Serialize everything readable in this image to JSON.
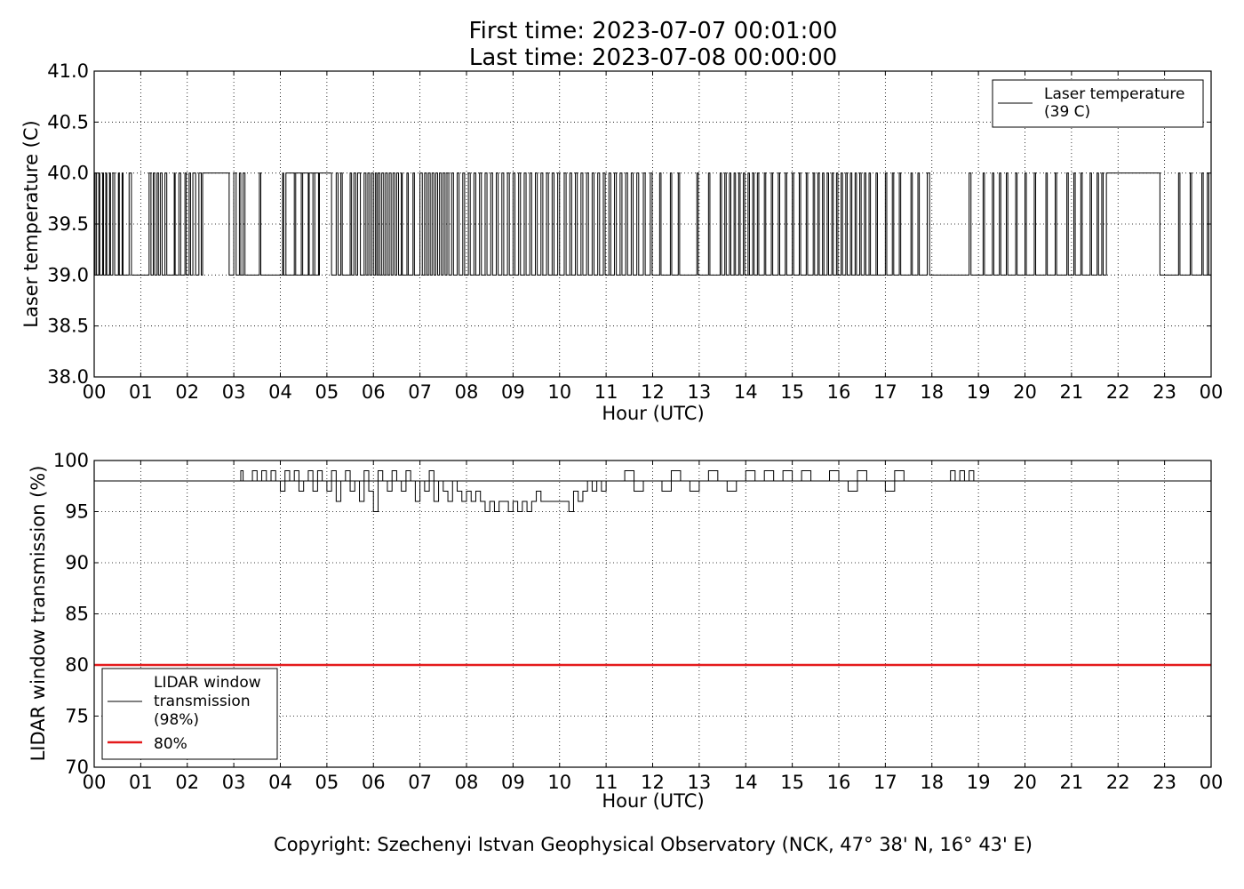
{
  "figure": {
    "title_line1": "First time: 2023-07-07 00:01:00",
    "title_line2": "Last time: 2023-07-08 00:00:00",
    "copyright": "Copyright: Szechenyi Istvan Geophysical Observatory (NCK, 47° 38' N, 16° 43' E)"
  },
  "chart_data": [
    {
      "type": "line",
      "xlabel": "Hour (UTC)",
      "ylabel": "Laser temperature (C)",
      "xlim": [
        0,
        24
      ],
      "ylim": [
        38.0,
        41.0
      ],
      "x_ticks": [
        "00",
        "01",
        "02",
        "03",
        "04",
        "05",
        "06",
        "07",
        "08",
        "09",
        "10",
        "11",
        "12",
        "13",
        "14",
        "15",
        "16",
        "17",
        "18",
        "19",
        "20",
        "21",
        "22",
        "23",
        "00"
      ],
      "y_ticks": [
        "38.0",
        "38.5",
        "39.0",
        "39.5",
        "40.0",
        "40.5",
        "41.0"
      ],
      "grid": true,
      "legend_position": "top-right",
      "legend": [
        "Laser temperature",
        "(39 C)"
      ],
      "series": [
        {
          "name": "Laser temperature (39 C)",
          "color": "#000000",
          "base_value": 39.0,
          "spike_value": 40.0,
          "spike_intervals_hours": [
            [
              0.02,
              0.05
            ],
            [
              0.1,
              0.12
            ],
            [
              0.18,
              0.2
            ],
            [
              0.25,
              0.27
            ],
            [
              0.33,
              0.35
            ],
            [
              0.4,
              0.44
            ],
            [
              0.52,
              0.54
            ],
            [
              0.6,
              0.62
            ],
            [
              0.75,
              0.8
            ],
            [
              1.18,
              1.22
            ],
            [
              1.27,
              1.3
            ],
            [
              1.35,
              1.38
            ],
            [
              1.42,
              1.46
            ],
            [
              1.52,
              1.56
            ],
            [
              1.72,
              1.74
            ],
            [
              1.82,
              1.86
            ],
            [
              1.95,
              1.98
            ],
            [
              2.04,
              2.07
            ],
            [
              2.12,
              2.18
            ],
            [
              2.25,
              2.3
            ],
            [
              2.33,
              2.9
            ],
            [
              3.0,
              3.05
            ],
            [
              3.12,
              3.15
            ],
            [
              3.2,
              3.24
            ],
            [
              3.55,
              3.58
            ],
            [
              4.05,
              4.07
            ],
            [
              4.3,
              4.33
            ],
            [
              4.45,
              4.48
            ],
            [
              4.6,
              4.62
            ],
            [
              4.7,
              4.74
            ],
            [
              4.82,
              4.84
            ],
            [
              5.1,
              4.12
            ],
            [
              5.2,
              5.24
            ],
            [
              5.3,
              5.33
            ],
            [
              5.5,
              5.53
            ],
            [
              5.58,
              5.62
            ],
            [
              5.66,
              5.72
            ],
            [
              5.8,
              5.84
            ],
            [
              5.88,
              5.92
            ],
            [
              5.96,
              6.0
            ],
            [
              6.04,
              6.07
            ],
            [
              6.1,
              6.14
            ],
            [
              6.18,
              6.22
            ],
            [
              6.26,
              6.3
            ],
            [
              6.34,
              6.38
            ],
            [
              6.42,
              6.46
            ],
            [
              6.5,
              6.54
            ],
            [
              6.6,
              6.62
            ],
            [
              6.72,
              6.75
            ],
            [
              6.85,
              6.88
            ],
            [
              7.0,
              7.05
            ],
            [
              7.1,
              7.14
            ],
            [
              7.18,
              7.22
            ],
            [
              7.26,
              7.3
            ],
            [
              7.34,
              7.38
            ],
            [
              7.42,
              7.46
            ],
            [
              7.5,
              7.54
            ],
            [
              7.58,
              7.62
            ],
            [
              7.68,
              7.72
            ],
            [
              7.8,
              7.84
            ],
            [
              7.92,
              7.96
            ],
            [
              8.04,
              8.08
            ],
            [
              8.16,
              8.2
            ],
            [
              8.28,
              8.32
            ],
            [
              8.4,
              8.44
            ],
            [
              8.52,
              8.56
            ],
            [
              8.64,
              8.68
            ],
            [
              8.76,
              8.8
            ],
            [
              8.88,
              8.92
            ],
            [
              9.0,
              9.04
            ],
            [
              9.12,
              9.16
            ],
            [
              9.24,
              9.28
            ],
            [
              9.36,
              9.4
            ],
            [
              9.48,
              9.52
            ],
            [
              9.6,
              9.64
            ],
            [
              9.72,
              9.76
            ],
            [
              9.84,
              9.88
            ],
            [
              9.96,
              10.0
            ],
            [
              10.1,
              10.14
            ],
            [
              10.22,
              10.26
            ],
            [
              10.34,
              10.38
            ],
            [
              10.46,
              10.5
            ],
            [
              10.58,
              10.62
            ],
            [
              10.7,
              10.74
            ],
            [
              10.82,
              10.86
            ],
            [
              10.94,
              10.98
            ],
            [
              11.06,
              11.1
            ],
            [
              11.18,
              11.22
            ],
            [
              11.3,
              11.34
            ],
            [
              11.42,
              11.46
            ],
            [
              11.54,
              11.58
            ],
            [
              11.66,
              11.7
            ],
            [
              11.8,
              11.84
            ],
            [
              11.95,
              11.99
            ],
            [
              12.15,
              12.18
            ],
            [
              12.38,
              12.41
            ],
            [
              12.55,
              12.58
            ],
            [
              12.95,
              12.98
            ],
            [
              13.2,
              13.23
            ],
            [
              13.45,
              13.48
            ],
            [
              13.55,
              13.58
            ],
            [
              13.65,
              13.68
            ],
            [
              13.75,
              13.78
            ],
            [
              13.85,
              13.88
            ],
            [
              13.95,
              13.98
            ],
            [
              14.05,
              14.08
            ],
            [
              14.15,
              14.18
            ],
            [
              14.25,
              14.28
            ],
            [
              14.4,
              14.43
            ],
            [
              14.55,
              14.58
            ],
            [
              14.7,
              14.73
            ],
            [
              14.85,
              14.88
            ],
            [
              15.0,
              15.03
            ],
            [
              15.15,
              15.18
            ],
            [
              15.3,
              15.33
            ],
            [
              15.45,
              15.48
            ],
            [
              15.55,
              15.58
            ],
            [
              15.65,
              15.68
            ],
            [
              15.75,
              15.78
            ],
            [
              15.85,
              15.88
            ],
            [
              15.95,
              15.98
            ],
            [
              16.05,
              16.08
            ],
            [
              16.15,
              16.18
            ],
            [
              16.25,
              16.28
            ],
            [
              16.35,
              16.38
            ],
            [
              16.45,
              16.48
            ],
            [
              16.55,
              16.58
            ],
            [
              16.65,
              16.68
            ],
            [
              16.8,
              16.83
            ],
            [
              17.0,
              17.03
            ],
            [
              17.15,
              17.18
            ],
            [
              17.3,
              17.33
            ],
            [
              17.55,
              17.58
            ],
            [
              17.7,
              17.73
            ],
            [
              17.9,
              17.95
            ],
            [
              18.8,
              18.84
            ],
            [
              19.1,
              19.13
            ],
            [
              19.3,
              19.33
            ],
            [
              19.45,
              19.48
            ],
            [
              19.6,
              19.63
            ],
            [
              19.8,
              19.83
            ],
            [
              20.0,
              20.03
            ],
            [
              20.2,
              20.23
            ],
            [
              20.45,
              20.48
            ],
            [
              20.65,
              20.68
            ],
            [
              20.9,
              20.93
            ],
            [
              21.05,
              21.08
            ],
            [
              21.2,
              21.23
            ],
            [
              21.4,
              21.43
            ],
            [
              21.55,
              21.58
            ],
            [
              21.65,
              21.68
            ],
            [
              21.75,
              22.9
            ],
            [
              23.3,
              23.33
            ],
            [
              23.55,
              23.58
            ],
            [
              23.8,
              23.83
            ],
            [
              23.92,
              23.95
            ]
          ]
        }
      ]
    },
    {
      "type": "line",
      "xlabel": "Hour (UTC)",
      "ylabel": "LIDAR window transmission (%)",
      "xlim": [
        0,
        24
      ],
      "ylim": [
        70,
        100
      ],
      "x_ticks": [
        "00",
        "01",
        "02",
        "03",
        "04",
        "05",
        "06",
        "07",
        "08",
        "09",
        "10",
        "11",
        "12",
        "13",
        "14",
        "15",
        "16",
        "17",
        "18",
        "19",
        "20",
        "21",
        "22",
        "23",
        "00"
      ],
      "y_ticks": [
        "70",
        "75",
        "80",
        "85",
        "90",
        "95",
        "100"
      ],
      "grid": true,
      "legend_position": "bottom-left",
      "legend": [
        "LIDAR window",
        "transmission",
        "(98%)",
        "80%"
      ],
      "series": [
        {
          "name": "LIDAR window transmission (98%)",
          "color": "#000000",
          "baseline": 98,
          "x": [
            0,
            3.1,
            3.15,
            3.2,
            3.4,
            3.5,
            3.6,
            3.7,
            3.8,
            3.9,
            4.0,
            4.1,
            4.2,
            4.3,
            4.4,
            4.5,
            4.6,
            4.7,
            4.8,
            4.9,
            5.0,
            5.1,
            5.2,
            5.3,
            5.4,
            5.5,
            5.6,
            5.7,
            5.8,
            5.9,
            6.0,
            6.1,
            6.2,
            6.3,
            6.4,
            6.5,
            6.6,
            6.7,
            6.8,
            6.9,
            7.0,
            7.1,
            7.2,
            7.3,
            7.4,
            7.5,
            7.6,
            7.7,
            7.8,
            7.9,
            8.0,
            8.1,
            8.2,
            8.3,
            8.4,
            8.5,
            8.6,
            8.7,
            8.8,
            8.9,
            9.0,
            9.1,
            9.2,
            9.3,
            9.4,
            9.5,
            9.6,
            9.7,
            9.8,
            9.9,
            10.0,
            10.1,
            10.2,
            10.3,
            10.4,
            10.5,
            10.6,
            10.7,
            10.8,
            10.9,
            11.0,
            11.2,
            11.4,
            11.6,
            11.8,
            12.0,
            12.2,
            12.4,
            12.6,
            12.8,
            13.0,
            13.2,
            13.4,
            13.6,
            13.8,
            14.0,
            14.2,
            14.4,
            14.6,
            14.8,
            15.0,
            15.2,
            15.4,
            15.6,
            15.8,
            16.0,
            16.2,
            16.4,
            16.6,
            16.8,
            17.0,
            17.2,
            17.4,
            17.6,
            17.8,
            18.0,
            18.4,
            18.5,
            18.6,
            18.7,
            18.8,
            18.9,
            24
          ],
          "y": [
            98,
            98,
            99,
            98,
            99,
            98,
            99,
            98,
            99,
            98,
            97,
            99,
            98,
            99,
            97,
            98,
            99,
            97,
            99,
            98,
            97,
            99,
            96,
            98,
            99,
            97,
            98,
            96,
            99,
            97,
            95,
            99,
            98,
            97,
            99,
            98,
            97,
            99,
            98,
            96,
            98,
            97,
            99,
            96,
            98,
            97,
            96,
            98,
            97,
            96,
            97,
            96,
            97,
            96,
            95,
            96,
            95,
            96,
            96,
            95,
            96,
            95,
            96,
            95,
            96,
            97,
            96,
            96,
            96,
            96,
            96,
            96,
            95,
            97,
            96,
            97,
            98,
            97,
            98,
            97,
            98,
            98,
            99,
            97,
            98,
            98,
            97,
            99,
            98,
            97,
            98,
            99,
            98,
            97,
            98,
            99,
            98,
            99,
            98,
            99,
            98,
            99,
            98,
            98,
            99,
            98,
            97,
            99,
            98,
            98,
            97,
            99,
            98,
            98,
            98,
            98,
            99,
            98,
            99,
            98,
            99,
            98,
            98
          ]
        },
        {
          "name": "80%",
          "color": "#e41a1c",
          "constant": 80
        }
      ]
    }
  ]
}
